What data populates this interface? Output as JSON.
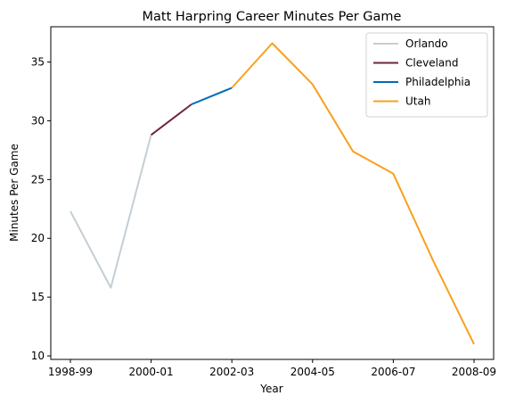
{
  "chart_data": {
    "type": "line",
    "title": "Matt Harpring Career Minutes Per Game",
    "xlabel": "Year",
    "ylabel": "Minutes Per Game",
    "x_tick_labels": [
      "1998-99",
      "2000-01",
      "2002-03",
      "2004-05",
      "2006-07",
      "2008-09"
    ],
    "y_ticks": [
      10,
      15,
      20,
      25,
      30,
      35
    ],
    "ylim": [
      9.7,
      38.0
    ],
    "grid": false,
    "legend_position": "top-right",
    "seasons": [
      "1998-99",
      "1999-00",
      "2000-01",
      "2001-02",
      "2002-03",
      "2003-04",
      "2004-05",
      "2005-06",
      "2006-07",
      "2007-08",
      "2008-09"
    ],
    "series": [
      {
        "name": "Orlando",
        "color": "#C4CED4",
        "x": [
          "1998-99",
          "1999-00",
          "2000-01"
        ],
        "values": [
          22.3,
          15.8,
          28.8
        ]
      },
      {
        "name": "Cleveland",
        "color": "#6F263D",
        "x": [
          "2000-01",
          "2001-02"
        ],
        "values": [
          28.8,
          31.4
        ]
      },
      {
        "name": "Philadelphia",
        "color": "#006BB6",
        "x": [
          "2001-02",
          "2002-03"
        ],
        "values": [
          31.4,
          32.8
        ]
      },
      {
        "name": "Utah",
        "color": "#F9A01B",
        "x": [
          "2002-03",
          "2003-04",
          "2004-05",
          "2005-06",
          "2006-07",
          "2007-08",
          "2008-09"
        ],
        "values": [
          32.8,
          36.6,
          33.1,
          27.4,
          25.5,
          18.0,
          11.0
        ]
      }
    ]
  }
}
